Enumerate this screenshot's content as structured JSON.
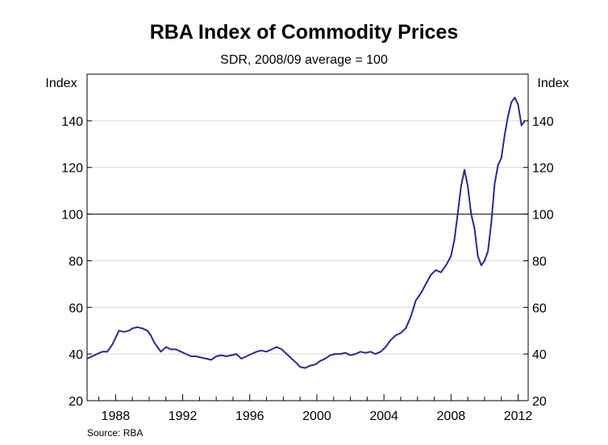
{
  "chart_data": {
    "type": "line",
    "title": "RBA Index of Commodity Prices",
    "subtitle": "SDR, 2008/09 average = 100",
    "ylabel_left": "Index",
    "ylabel_right": "Index",
    "source": "Source: RBA",
    "ylim": [
      20,
      160
    ],
    "yticks": [
      "20",
      "40",
      "60",
      "80",
      "100",
      "120",
      "140"
    ],
    "xlim": [
      1986.3,
      2012.6
    ],
    "xticks": [
      {
        "label": "1988",
        "value": 1988
      },
      {
        "label": "1992",
        "value": 1992
      },
      {
        "label": "1996",
        "value": 1996
      },
      {
        "label": "2000",
        "value": 2000
      },
      {
        "label": "2004",
        "value": 2004
      },
      {
        "label": "2008",
        "value": 2008
      },
      {
        "label": "2012",
        "value": 2012
      }
    ],
    "reference_line": 100,
    "grid": true,
    "line_color": "#2b2a8a",
    "series": [
      {
        "points": [
          [
            1986.3,
            38
          ],
          [
            1986.6,
            39
          ],
          [
            1986.9,
            40
          ],
          [
            1987.2,
            41
          ],
          [
            1987.5,
            41
          ],
          [
            1987.8,
            44
          ],
          [
            1988.0,
            47
          ],
          [
            1988.2,
            50
          ],
          [
            1988.5,
            49.5
          ],
          [
            1988.8,
            50
          ],
          [
            1989.0,
            51
          ],
          [
            1989.3,
            51.5
          ],
          [
            1989.6,
            51
          ],
          [
            1989.9,
            50
          ],
          [
            1990.1,
            48
          ],
          [
            1990.3,
            45
          ],
          [
            1990.5,
            43
          ],
          [
            1990.7,
            41
          ],
          [
            1991.0,
            43
          ],
          [
            1991.3,
            42
          ],
          [
            1991.6,
            42
          ],
          [
            1991.9,
            41
          ],
          [
            1992.2,
            40
          ],
          [
            1992.5,
            39
          ],
          [
            1992.8,
            39
          ],
          [
            1993.1,
            38.5
          ],
          [
            1993.4,
            38
          ],
          [
            1993.7,
            37.5
          ],
          [
            1994.0,
            39
          ],
          [
            1994.3,
            39.5
          ],
          [
            1994.6,
            39
          ],
          [
            1994.9,
            39.5
          ],
          [
            1995.2,
            40
          ],
          [
            1995.5,
            38
          ],
          [
            1995.8,
            39
          ],
          [
            1996.1,
            40
          ],
          [
            1996.4,
            41
          ],
          [
            1996.7,
            41.5
          ],
          [
            1997.0,
            41
          ],
          [
            1997.3,
            42
          ],
          [
            1997.6,
            43
          ],
          [
            1997.9,
            42
          ],
          [
            1998.2,
            40
          ],
          [
            1998.5,
            38
          ],
          [
            1998.8,
            36
          ],
          [
            1999.0,
            34.5
          ],
          [
            1999.3,
            34
          ],
          [
            1999.6,
            35
          ],
          [
            1999.9,
            35.5
          ],
          [
            2000.2,
            37
          ],
          [
            2000.5,
            38
          ],
          [
            2000.8,
            39.5
          ],
          [
            2001.1,
            40
          ],
          [
            2001.4,
            40
          ],
          [
            2001.7,
            40.5
          ],
          [
            2002.0,
            39.5
          ],
          [
            2002.3,
            40
          ],
          [
            2002.6,
            41
          ],
          [
            2002.9,
            40.5
          ],
          [
            2003.2,
            41
          ],
          [
            2003.5,
            40
          ],
          [
            2003.8,
            41
          ],
          [
            2004.1,
            43
          ],
          [
            2004.4,
            46
          ],
          [
            2004.7,
            48
          ],
          [
            2005.0,
            49
          ],
          [
            2005.3,
            51
          ],
          [
            2005.6,
            56
          ],
          [
            2005.9,
            63
          ],
          [
            2006.2,
            66
          ],
          [
            2006.5,
            70
          ],
          [
            2006.8,
            74
          ],
          [
            2007.1,
            76
          ],
          [
            2007.4,
            75
          ],
          [
            2007.7,
            78
          ],
          [
            2008.0,
            82
          ],
          [
            2008.2,
            89
          ],
          [
            2008.4,
            100
          ],
          [
            2008.6,
            112
          ],
          [
            2008.8,
            119
          ],
          [
            2009.0,
            112
          ],
          [
            2009.2,
            100
          ],
          [
            2009.4,
            94
          ],
          [
            2009.6,
            82
          ],
          [
            2009.8,
            78
          ],
          [
            2010.0,
            80
          ],
          [
            2010.2,
            84
          ],
          [
            2010.4,
            96
          ],
          [
            2010.6,
            113
          ],
          [
            2010.8,
            121
          ],
          [
            2011.0,
            124
          ],
          [
            2011.2,
            134
          ],
          [
            2011.4,
            142
          ],
          [
            2011.6,
            148
          ],
          [
            2011.8,
            150
          ],
          [
            2012.0,
            147
          ],
          [
            2012.2,
            138
          ],
          [
            2012.4,
            140
          ]
        ]
      }
    ]
  }
}
